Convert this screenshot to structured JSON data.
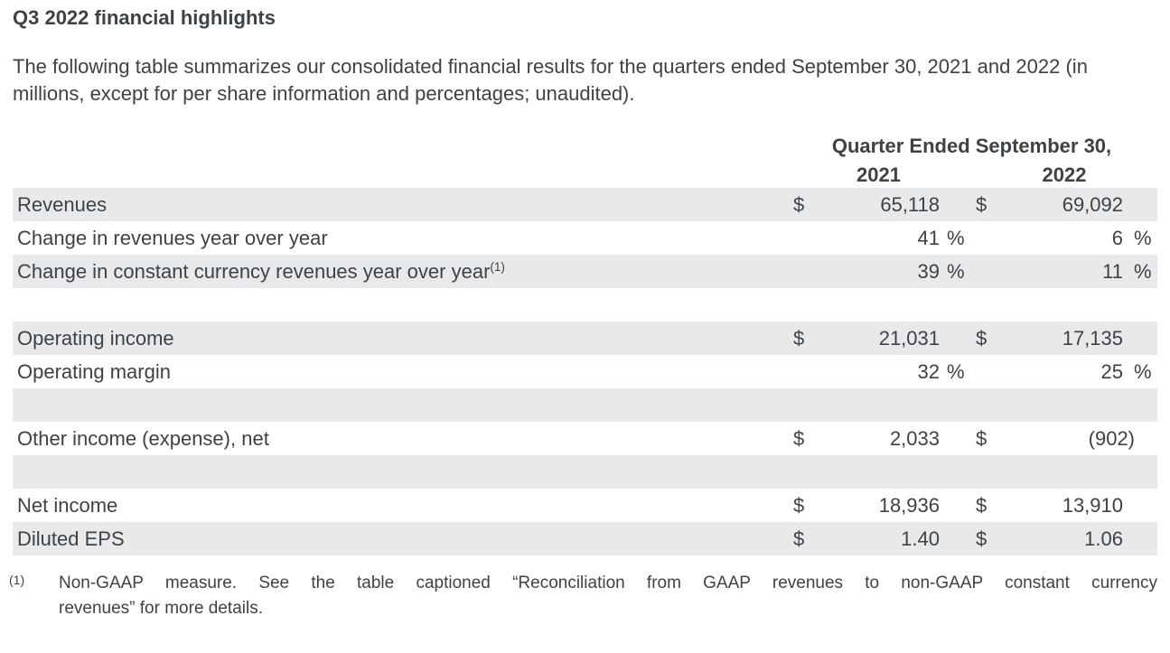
{
  "page": {
    "title": "Q3 2022 financial highlights",
    "intro": "The following table summarizes our consolidated financial results for the quarters ended September 30, 2021 and 2022 (in millions, except for per share information and percentages; unaudited)."
  },
  "table": {
    "header_title": "Quarter Ended September 30,",
    "year_2021": "2021",
    "year_2022": "2022",
    "rows": [
      {
        "label": "Revenues",
        "sup": "",
        "cur1": "$",
        "val1": "65,118",
        "suf1": "",
        "cur2": "$",
        "val2": "69,092",
        "suf2": "",
        "shaded": true
      },
      {
        "label": "Change in revenues year over year",
        "sup": "",
        "cur1": "",
        "val1": "41",
        "suf1": "%",
        "cur2": "",
        "val2": "6",
        "suf2": "%",
        "shaded": false
      },
      {
        "label": "Change in constant currency revenues year over year",
        "sup": "(1)",
        "cur1": "",
        "val1": "39",
        "suf1": "%",
        "cur2": "",
        "val2": "11",
        "suf2": "%",
        "shaded": true
      },
      {
        "label": "",
        "sup": "",
        "cur1": "",
        "val1": "",
        "suf1": "",
        "cur2": "",
        "val2": "",
        "suf2": "",
        "shaded": false
      },
      {
        "label": "Operating income",
        "sup": "",
        "cur1": "$",
        "val1": "21,031",
        "suf1": "",
        "cur2": "$",
        "val2": "17,135",
        "suf2": "",
        "shaded": true
      },
      {
        "label": "Operating margin",
        "sup": "",
        "cur1": "",
        "val1": "32",
        "suf1": "%",
        "cur2": "",
        "val2": "25",
        "suf2": "%",
        "shaded": false
      },
      {
        "label": "",
        "sup": "",
        "cur1": "",
        "val1": "",
        "suf1": "",
        "cur2": "",
        "val2": "",
        "suf2": "",
        "shaded": true
      },
      {
        "label": "Other income (expense), net",
        "sup": "",
        "cur1": "$",
        "val1": "2,033",
        "suf1": "",
        "cur2": "$",
        "val2": "(902)",
        "suf2": "",
        "shaded": false
      },
      {
        "label": "",
        "sup": "",
        "cur1": "",
        "val1": "",
        "suf1": "",
        "cur2": "",
        "val2": "",
        "suf2": "",
        "shaded": true
      },
      {
        "label": "Net income",
        "sup": "",
        "cur1": "$",
        "val1": "18,936",
        "suf1": "",
        "cur2": "$",
        "val2": "13,910",
        "suf2": "",
        "shaded": false
      },
      {
        "label": "Diluted EPS",
        "sup": "",
        "cur1": "$",
        "val1": "1.40",
        "suf1": "",
        "cur2": "$",
        "val2": "1.06",
        "suf2": "",
        "shaded": true
      }
    ]
  },
  "footnote": {
    "marker": "(1)",
    "line1": "Non-GAAP measure. See the table captioned “Reconciliation from GAAP revenues to non-GAAP constant currency",
    "line2": "revenues” for more details."
  }
}
